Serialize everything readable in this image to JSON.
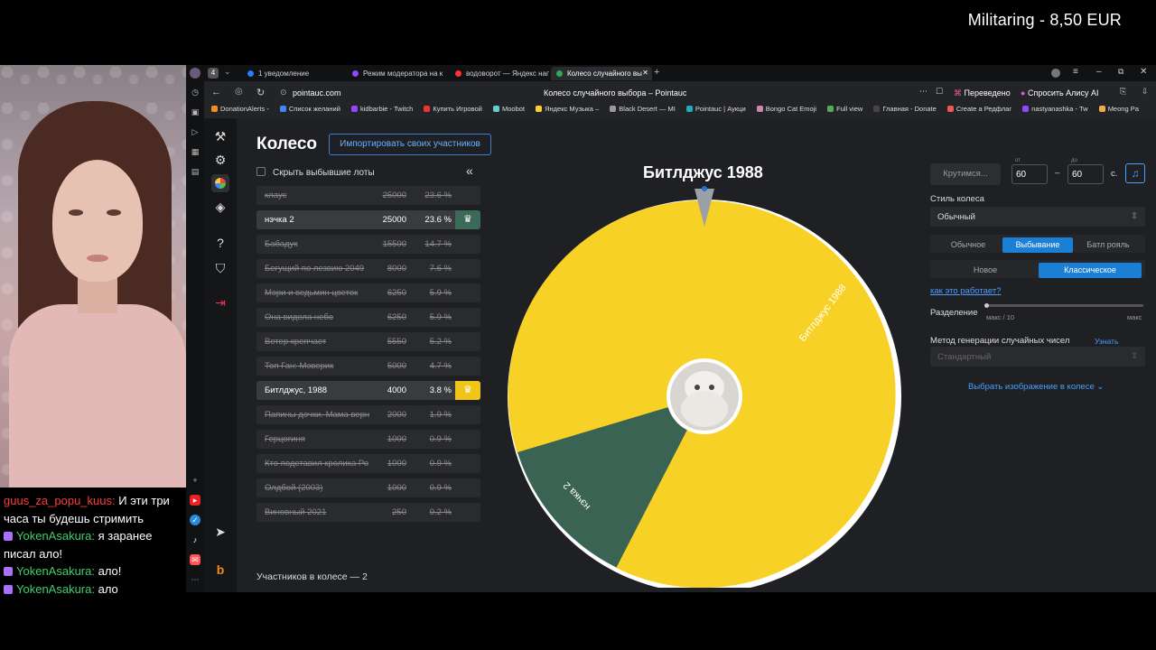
{
  "donation": "Militaring - 8,50 EUR",
  "chat": [
    {
      "user": "guus_za_popu_kuus",
      "user_color": "#ff3b3b",
      "badge": false,
      "text": "И эти три"
    },
    {
      "user": "",
      "badge": false,
      "text": "часа ты будешь стримить"
    },
    {
      "user": "YokenAsakura",
      "user_color": "#3fcf6a",
      "badge": true,
      "text": "я заранее"
    },
    {
      "user": "",
      "badge": false,
      "text": "писал ало!"
    },
    {
      "user": "YokenAsakura",
      "user_color": "#3fcf6a",
      "badge": true,
      "text": "ало!"
    },
    {
      "user": "YokenAsakura",
      "user_color": "#3fcf6a",
      "badge": true,
      "text": "ало"
    }
  ],
  "tabs": [
    {
      "label": "1 уведомление",
      "color": "#2a7bff"
    },
    {
      "label": "Режим модератора на к",
      "color": "#9146ff"
    },
    {
      "label": "водоворот — Яндекс нап",
      "color": "#ff3333"
    },
    {
      "label": "Колесо случайного вы",
      "color": "#34a853"
    }
  ],
  "address": {
    "url": "pointauc.com",
    "page_title": "Колесо случайного выбора – Pointauc",
    "translated": "Переведено",
    "alice": "Спросить Алису AI"
  },
  "bookmarks": [
    "DonationAlerts -",
    "Список желаний",
    "kidbarbie - Twitch",
    "Купить Игровой",
    "Moobot",
    "Яндекс Музыка –",
    "Black Desert — MI",
    "Pointauc | Аукци",
    "Bongo Cat Emoji",
    "Full view",
    "Главная - Donate",
    "Create a Редфлаг",
    "nastyanashka - Tw",
    "Meong Pa"
  ],
  "app": {
    "title": "Колесо",
    "import_button": "Импортировать своих участников",
    "hide_label": "Скрыть выбывшие лоты",
    "participants": "Участников в колесе — 2",
    "winner": "Битлджус 1988"
  },
  "lots": [
    {
      "name": "клаус",
      "amount": "25000",
      "percent": "23.6 %",
      "out": true
    },
    {
      "name": "нэчка 2",
      "amount": "25000",
      "percent": "23.6 %",
      "out": false,
      "color": "#3d6a58"
    },
    {
      "name": "Бабадук",
      "amount": "15500",
      "percent": "14.7 %",
      "out": true
    },
    {
      "name": "Бегущий по лезвию 2049",
      "amount": "8000",
      "percent": "7.6 %",
      "out": true
    },
    {
      "name": "Мэри и ведьмин цветок",
      "amount": "6250",
      "percent": "5.9 %",
      "out": true
    },
    {
      "name": "Она видела небо",
      "amount": "6250",
      "percent": "5.9 %",
      "out": true
    },
    {
      "name": "Ветер крепчает",
      "amount": "5550",
      "percent": "5.2 %",
      "out": true
    },
    {
      "name": "Топ Ган: Мэверик",
      "amount": "5000",
      "percent": "4.7 %",
      "out": true
    },
    {
      "name": "Битлджус, 1988",
      "amount": "4000",
      "percent": "3.8 %",
      "out": false,
      "color": "#f0c419"
    },
    {
      "name": "Папины дочки. Мама верн",
      "amount": "2000",
      "percent": "1.9 %",
      "out": true
    },
    {
      "name": "Герцогиня",
      "amount": "1000",
      "percent": "0.9 %",
      "out": true
    },
    {
      "name": "Кто подставил кролика Ро",
      "amount": "1000",
      "percent": "0.9 %",
      "out": true
    },
    {
      "name": "Олдбой (2003)",
      "amount": "1000",
      "percent": "0.9 %",
      "out": true
    },
    {
      "name": "Виновный 2021",
      "amount": "250",
      "percent": "0.2 %",
      "out": true
    }
  ],
  "wheel": {
    "slices": [
      {
        "label": "Битлджус 1988",
        "color": "#f7d125"
      },
      {
        "label": "нэчка 2",
        "color": "#3a6353"
      }
    ]
  },
  "right": {
    "spin_button": "Крутимся...",
    "from_label": "от",
    "to_label": "до",
    "from_value": "60",
    "dash": "–",
    "to_value": "60",
    "unit": "с.",
    "style_label": "Стиль колеса",
    "style_value": "Обычный",
    "mode_tabs": [
      "Обычное",
      "Выбывание",
      "Батл рояль"
    ],
    "mode_active": 1,
    "type_tabs": [
      "Новое",
      "Классическое"
    ],
    "type_active": 1,
    "how_link": "как это работает?",
    "split_label": "Разделение",
    "split_min": "макс / 10",
    "split_max": "макс",
    "rng_label": "Метод генерации случайных чисел",
    "rng_more": "Узнать больше",
    "rng_value": "Стандартный",
    "image_link": "Выбрать изображение в колесе"
  }
}
